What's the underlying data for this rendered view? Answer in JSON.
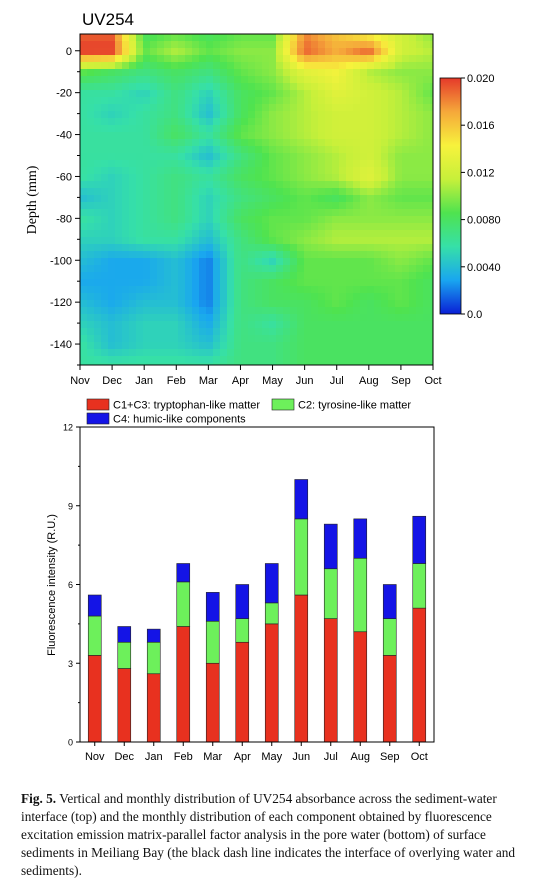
{
  "chart_data": [
    {
      "type": "heatmap",
      "title": "UV254",
      "xlabel": "",
      "ylabel": "Depth (mm)",
      "x_categories": [
        "Nov",
        "Dec",
        "Jan",
        "Feb",
        "Mar",
        "Apr",
        "May",
        "Jun",
        "Jul",
        "Aug",
        "Sep",
        "Oct"
      ],
      "y_ticks": [
        0,
        -20,
        -40,
        -60,
        -80,
        -100,
        -120,
        -140
      ],
      "ylim": [
        -150,
        8
      ],
      "colorbar": {
        "ticks": [
          "0.020",
          "0.016",
          "0.012",
          "0.0080",
          "0.0040",
          "0.0"
        ],
        "range": [
          0.0,
          0.02
        ],
        "stops": [
          "#0a1fd6",
          "#19a6f0",
          "#36e0a8",
          "#4fe34f",
          "#c7f03a",
          "#f7f23c",
          "#f5a83a",
          "#e53a2a"
        ]
      },
      "depths": [
        8,
        0,
        -10,
        -20,
        -30,
        -40,
        -50,
        -60,
        -70,
        -80,
        -90,
        -100,
        -110,
        -120,
        -130,
        -140,
        -150
      ],
      "values": [
        [
          0.019,
          0.019,
          0.008,
          0.009,
          0.008,
          0.009,
          0.009,
          0.018,
          0.016,
          0.014,
          0.012,
          0.01
        ],
        [
          0.02,
          0.02,
          0.009,
          0.011,
          0.009,
          0.01,
          0.01,
          0.019,
          0.017,
          0.019,
          0.012,
          0.011
        ],
        [
          0.009,
          0.008,
          0.007,
          0.008,
          0.007,
          0.009,
          0.01,
          0.013,
          0.014,
          0.011,
          0.01,
          0.01
        ],
        [
          0.006,
          0.006,
          0.005,
          0.007,
          0.005,
          0.008,
          0.009,
          0.011,
          0.013,
          0.012,
          0.011,
          0.009
        ],
        [
          0.006,
          0.005,
          0.006,
          0.007,
          0.004,
          0.008,
          0.01,
          0.011,
          0.012,
          0.012,
          0.011,
          0.01
        ],
        [
          0.006,
          0.006,
          0.006,
          0.008,
          0.006,
          0.009,
          0.01,
          0.011,
          0.012,
          0.012,
          0.011,
          0.01
        ],
        [
          0.006,
          0.006,
          0.006,
          0.006,
          0.004,
          0.007,
          0.009,
          0.01,
          0.011,
          0.012,
          0.01,
          0.01
        ],
        [
          0.006,
          0.005,
          0.006,
          0.007,
          0.006,
          0.008,
          0.009,
          0.01,
          0.011,
          0.013,
          0.01,
          0.01
        ],
        [
          0.004,
          0.005,
          0.006,
          0.007,
          0.005,
          0.007,
          0.008,
          0.009,
          0.008,
          0.01,
          0.009,
          0.009
        ],
        [
          0.006,
          0.005,
          0.006,
          0.007,
          0.005,
          0.008,
          0.009,
          0.009,
          0.01,
          0.01,
          0.01,
          0.01
        ],
        [
          0.005,
          0.005,
          0.006,
          0.006,
          0.004,
          0.007,
          0.009,
          0.01,
          0.011,
          0.011,
          0.011,
          0.011
        ],
        [
          0.004,
          0.003,
          0.003,
          0.004,
          0.002,
          0.007,
          0.005,
          0.009,
          0.009,
          0.009,
          0.01,
          0.009
        ],
        [
          0.003,
          0.003,
          0.003,
          0.004,
          0.002,
          0.007,
          0.008,
          0.009,
          0.009,
          0.009,
          0.009,
          0.008
        ],
        [
          0.004,
          0.003,
          0.004,
          0.004,
          0.002,
          0.007,
          0.008,
          0.008,
          0.009,
          0.008,
          0.009,
          0.008
        ],
        [
          0.005,
          0.004,
          0.005,
          0.005,
          0.003,
          0.007,
          0.006,
          0.008,
          0.008,
          0.008,
          0.008,
          0.008
        ],
        [
          0.006,
          0.004,
          0.005,
          0.005,
          0.004,
          0.007,
          0.007,
          0.008,
          0.008,
          0.008,
          0.008,
          0.008
        ],
        [
          0.006,
          0.006,
          0.006,
          0.006,
          0.006,
          0.007,
          0.007,
          0.008,
          0.008,
          0.008,
          0.008,
          0.008
        ]
      ]
    },
    {
      "type": "bar",
      "stacked": true,
      "categories": [
        "Nov",
        "Dec",
        "Jan",
        "Feb",
        "Mar",
        "Apr",
        "May",
        "Jun",
        "Jul",
        "Aug",
        "Sep",
        "Oct"
      ],
      "ylabel": "Fluorescence intensity (R.U.)",
      "xlabel": "",
      "ylim": [
        0,
        12
      ],
      "y_ticks": [
        0,
        3,
        6,
        9,
        12
      ],
      "legend_placement": "top",
      "series": [
        {
          "name": "C1+C3: tryptophan-like matter",
          "color": "#e8311f",
          "values": [
            3.3,
            2.8,
            2.6,
            4.4,
            3.0,
            3.8,
            4.5,
            5.6,
            4.7,
            4.2,
            3.3,
            5.1
          ]
        },
        {
          "name": "C2: tyrosine-like matter",
          "color": "#6df05b",
          "values": [
            1.5,
            1.0,
            1.2,
            1.7,
            1.6,
            0.9,
            0.8,
            2.9,
            1.9,
            2.8,
            1.4,
            1.7
          ]
        },
        {
          "name": "C4: humic-like components",
          "color": "#1414e6",
          "values": [
            0.8,
            0.6,
            0.5,
            0.7,
            1.1,
            1.3,
            1.5,
            1.5,
            1.7,
            1.5,
            1.3,
            1.8
          ]
        }
      ]
    }
  ],
  "caption": {
    "label": "Fig. 5.",
    "text": "Vertical and monthly distribution of UV254 absorbance across the sediment-water interface (top) and the monthly distribution of each component obtained by fluorescence excitation emission matrix-parallel factor analysis in the pore water (bottom) of surface sediments in Meiliang Bay (the black dash line indicates the interface of overlying water and sediments)."
  }
}
